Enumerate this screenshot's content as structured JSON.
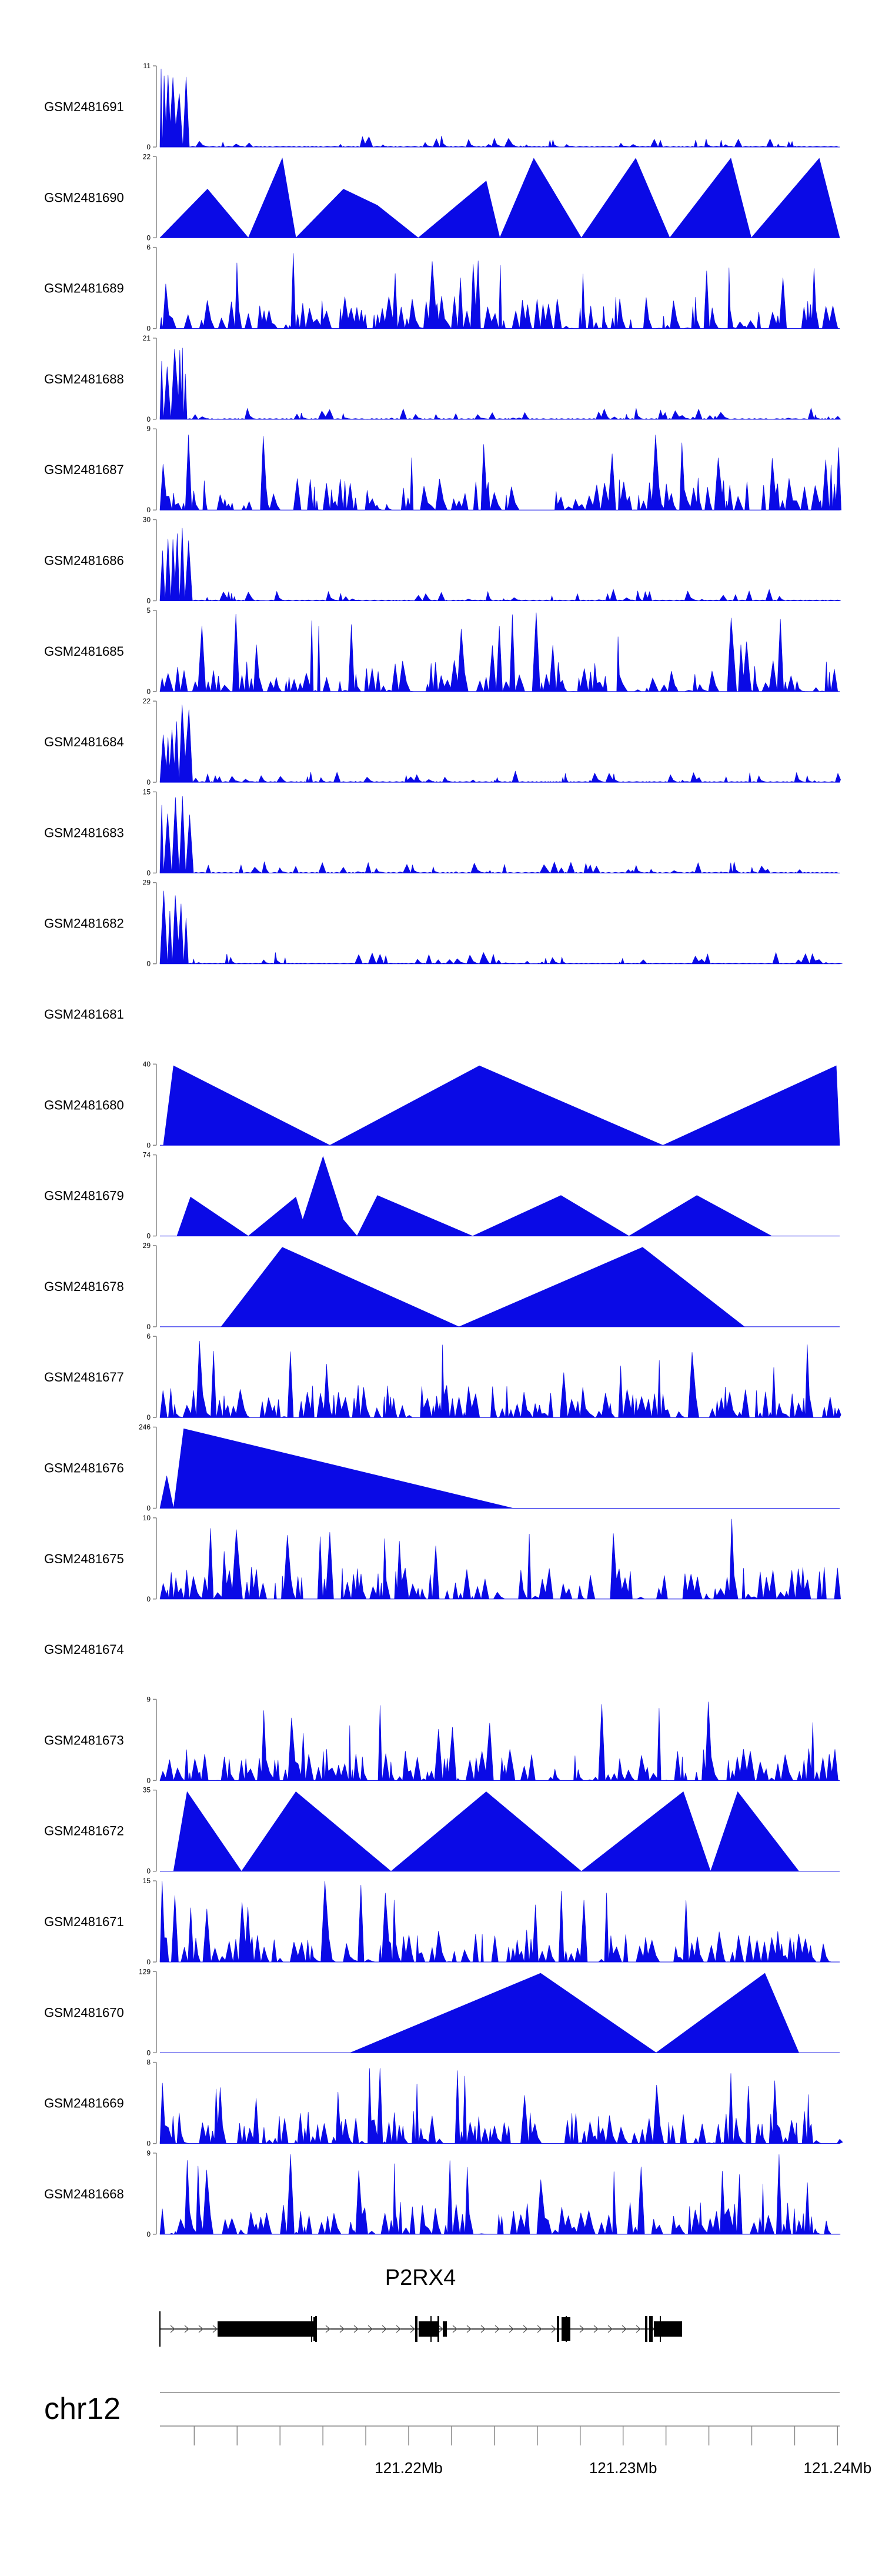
{
  "chart_data": {
    "type": "area",
    "title": "",
    "chromosome": "chr12",
    "gene": "P2RX4",
    "genome_axis": {
      "range_mb": [
        121.2084,
        121.2401
      ],
      "tick_step_mb": 0.002,
      "labeled_ticks": [
        "121.22Mb",
        "121.23Mb",
        "121.24Mb"
      ],
      "labeled_tick_values_mb": [
        121.22,
        121.23,
        121.24
      ]
    },
    "tracks": [
      {
        "name": "GSM2481691",
        "ymax": 11
      },
      {
        "name": "GSM2481690",
        "ymax": 22
      },
      {
        "name": "GSM2481689",
        "ymax": 6
      },
      {
        "name": "GSM2481688",
        "ymax": 21
      },
      {
        "name": "GSM2481687",
        "ymax": 9
      },
      {
        "name": "GSM2481686",
        "ymax": 30
      },
      {
        "name": "GSM2481685",
        "ymax": 5
      },
      {
        "name": "GSM2481684",
        "ymax": 22
      },
      {
        "name": "GSM2481683",
        "ymax": 15
      },
      {
        "name": "GSM2481682",
        "ymax": 29
      },
      {
        "name": "GSM2481681",
        "ymax": null
      },
      {
        "name": "GSM2481680",
        "ymax": 40
      },
      {
        "name": "GSM2481679",
        "ymax": 74
      },
      {
        "name": "GSM2481678",
        "ymax": 29
      },
      {
        "name": "GSM2481677",
        "ymax": 6
      },
      {
        "name": "GSM2481676",
        "ymax": 246
      },
      {
        "name": "GSM2481675",
        "ymax": 10
      },
      {
        "name": "GSM2481674",
        "ymax": null
      },
      {
        "name": "GSM2481673",
        "ymax": 9
      },
      {
        "name": "GSM2481672",
        "ymax": 35
      },
      {
        "name": "GSM2481671",
        "ymax": 15
      },
      {
        "name": "GSM2481670",
        "ymax": 129
      },
      {
        "name": "GSM2481669",
        "ymax": 8
      },
      {
        "name": "GSM2481668",
        "ymax": 9
      }
    ],
    "zero_label": "0",
    "colors": {
      "signal": "#0a0ae6",
      "axis": "#888888",
      "gene": "#000000"
    }
  }
}
